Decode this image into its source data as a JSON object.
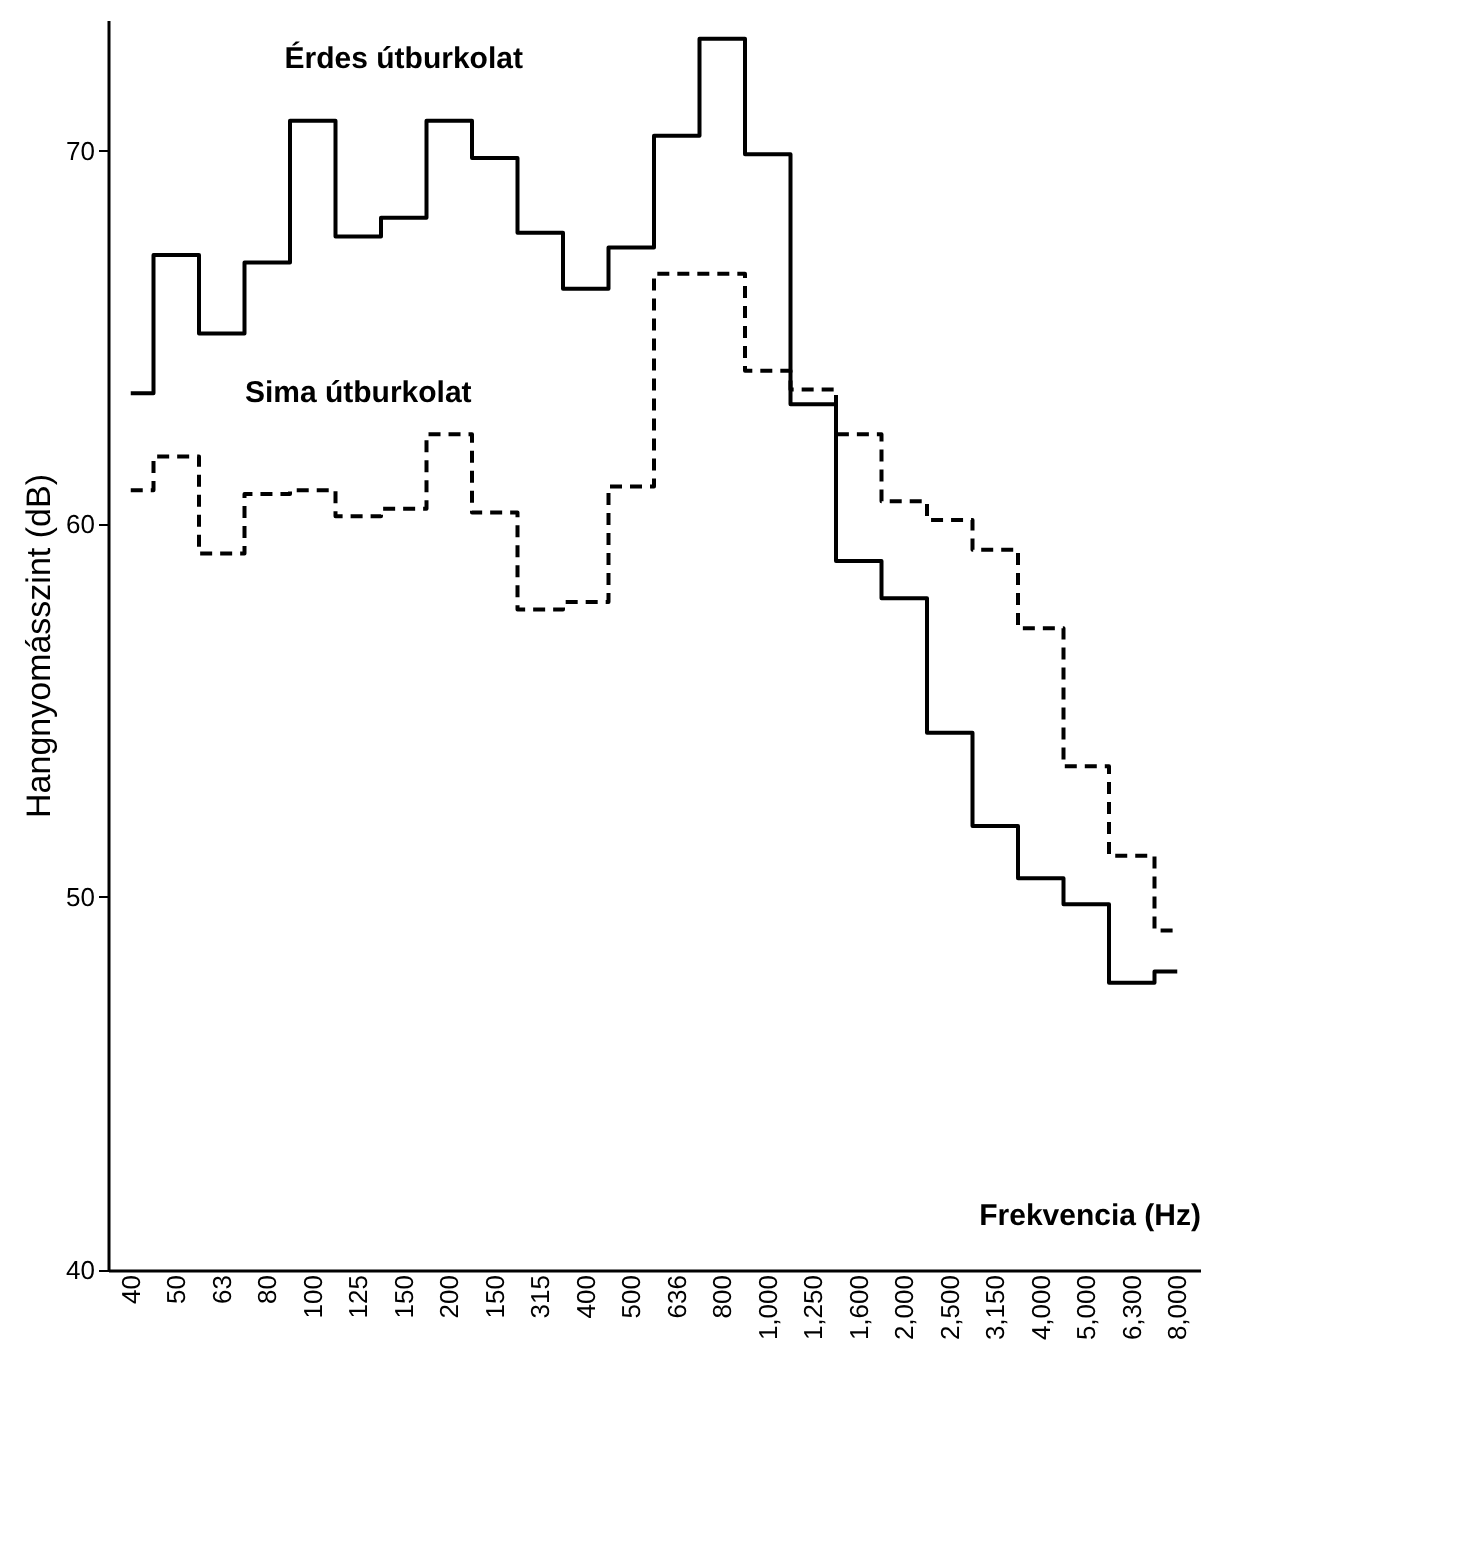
{
  "chart_data": {
    "type": "step",
    "xlabel": "Frekvencia (Hz)",
    "ylabel": "Hangnyomásszint (dB)",
    "categories": [
      "40",
      "50",
      "63",
      "80",
      "100",
      "125",
      "150",
      "200",
      "150",
      "315",
      "400",
      "500",
      "636",
      "800",
      "1,000",
      "1,250",
      "1,600",
      "2,000",
      "2,500",
      "3,150",
      "4,000",
      "5,000",
      "6,300",
      "8,000"
    ],
    "series": [
      {
        "name": "Érdes útburkolat",
        "color": "#000000",
        "line_style": "solid",
        "values": [
          63.5,
          67.2,
          65.1,
          67.0,
          70.8,
          67.7,
          68.2,
          70.8,
          69.8,
          67.8,
          66.3,
          67.4,
          70.4,
          73.0,
          69.9,
          63.2,
          59.0,
          58.0,
          54.4,
          51.9,
          50.5,
          49.8,
          47.7,
          48.0
        ]
      },
      {
        "name": "Sima útburkolat",
        "color": "#000000",
        "line_style": "dashed",
        "values": [
          60.9,
          61.8,
          59.2,
          60.8,
          60.9,
          60.2,
          60.4,
          62.4,
          60.3,
          57.7,
          57.9,
          61.0,
          66.7,
          66.7,
          64.1,
          63.6,
          62.4,
          60.6,
          60.1,
          59.3,
          57.2,
          53.5,
          51.1,
          49.1
        ]
      }
    ],
    "ylim": [
      40,
      73.5
    ],
    "yticks": [
      40,
      50,
      60,
      70
    ],
    "grid": false,
    "legend": false
  }
}
